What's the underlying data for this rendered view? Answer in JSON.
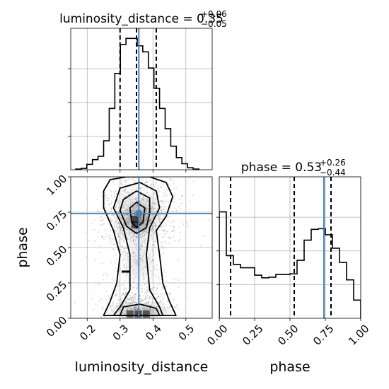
{
  "chart_data": [
    {
      "type": "histogram",
      "panel": "luminosity_distance-marginal",
      "title": {
        "param": "luminosity_distance",
        "median": "0.35",
        "plus": "+0.06",
        "minus": "−0.05"
      },
      "x_range": [
        0.15,
        0.58
      ],
      "x_ticks": [
        0.2,
        0.3,
        0.4,
        0.5
      ],
      "bin_edges": [
        0.165,
        0.182,
        0.199,
        0.216,
        0.233,
        0.25,
        0.267,
        0.284,
        0.301,
        0.318,
        0.335,
        0.352,
        0.369,
        0.386,
        0.403,
        0.42,
        0.437,
        0.454,
        0.471,
        0.488,
        0.505,
        0.522,
        0.54
      ],
      "counts": [
        0.5,
        1,
        4,
        7.5,
        10,
        21.5,
        45.5,
        71.5,
        93,
        97.5,
        97.5,
        92,
        87.5,
        75.5,
        60.5,
        45.5,
        30.5,
        17.5,
        9,
        4.5,
        1.5,
        0.5
      ],
      "ymax": 105,
      "quantiles": [
        0.3,
        0.35,
        0.41
      ],
      "truth": 0.357
    },
    {
      "type": "histogram",
      "panel": "phase-marginal",
      "title": {
        "param": "phase",
        "median": "0.53",
        "plus": "+0.26",
        "minus": "−0.44"
      },
      "x_range": [
        0.0,
        1.0
      ],
      "x_ticks": [
        0.0,
        0.25,
        0.5,
        0.75,
        1.0
      ],
      "x_tick_labels": [
        "0.00",
        "0.25",
        "0.50",
        "0.75",
        "1.00"
      ],
      "bin_edges": [
        0.0,
        0.05,
        0.1,
        0.15,
        0.2,
        0.25,
        0.3,
        0.35,
        0.4,
        0.45,
        0.5,
        0.55,
        0.6,
        0.65,
        0.7,
        0.75,
        0.8,
        0.85,
        0.9,
        0.95,
        1.0
      ],
      "counts": [
        79,
        46.5,
        40,
        37.5,
        37.5,
        32,
        30,
        30.5,
        32.5,
        32.5,
        33,
        43,
        58,
        66,
        66.5,
        62,
        52,
        41.5,
        28.5,
        13.5
      ],
      "ymax": 105,
      "quantiles": [
        0.08,
        0.53,
        0.79
      ],
      "truth": 0.74
    },
    {
      "type": "corner-2d",
      "panel": "luminosity_distance-vs-phase",
      "xlabel": "luminosity_distance",
      "ylabel": "phase",
      "x_range": [
        0.15,
        0.58
      ],
      "y_range": [
        0.0,
        1.0
      ],
      "x_ticks": [
        0.2,
        0.3,
        0.4,
        0.5
      ],
      "y_ticks": [
        0.0,
        0.25,
        0.5,
        0.75,
        1.0
      ],
      "y_tick_labels": [
        "0.00",
        "0.25",
        "0.50",
        "0.75",
        "1.00"
      ],
      "truth": {
        "x": 0.357,
        "y": 0.74
      },
      "grid": true
    }
  ],
  "labels": {
    "xlabel_ld": "luminosity_distance",
    "xlabel_phase": "phase",
    "ylabel_phase": "phase"
  }
}
